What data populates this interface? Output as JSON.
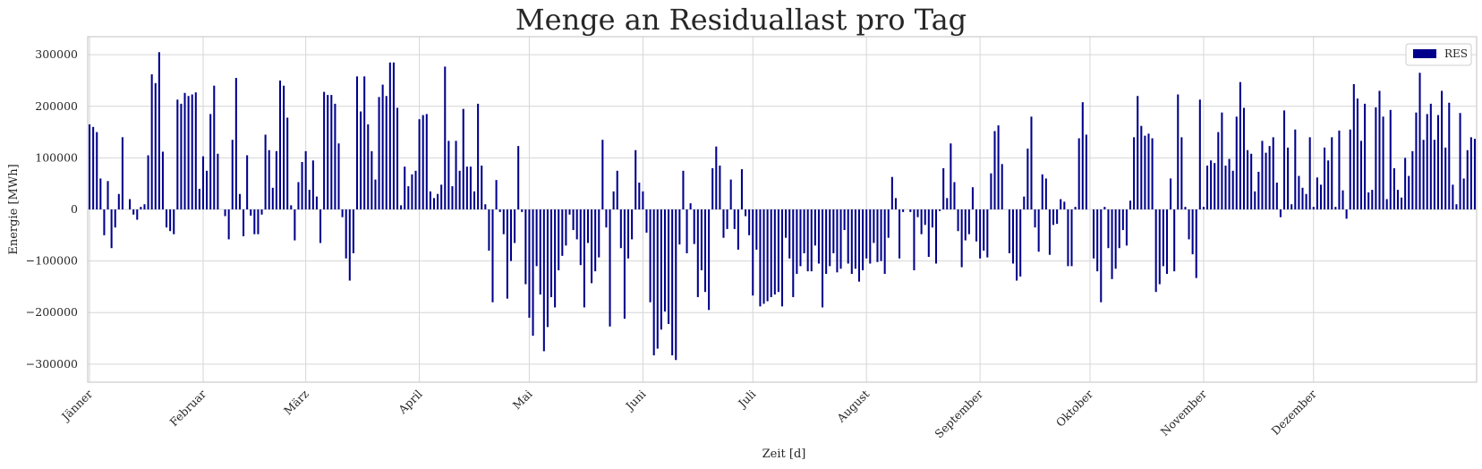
{
  "chart_data": {
    "type": "bar",
    "title": "Menge an Residuallast pro Tag",
    "xlabel": "Zeit [d]",
    "ylabel": "Energie [MWh]",
    "ylim": [
      -335000,
      335000
    ],
    "yticks": [
      -300000,
      -200000,
      -100000,
      0,
      100000,
      200000,
      300000
    ],
    "ytick_labels": [
      "−300000",
      "−200000",
      "−100000",
      "0",
      "100000",
      "200000",
      "300000"
    ],
    "xticks": [
      {
        "label": "Jänner",
        "day": 1
      },
      {
        "label": "Februar",
        "day": 32
      },
      {
        "label": "März",
        "day": 60
      },
      {
        "label": "April",
        "day": 91
      },
      {
        "label": "Mai",
        "day": 121
      },
      {
        "label": "Juni",
        "day": 152
      },
      {
        "label": "Juli",
        "day": 182
      },
      {
        "label": "August",
        "day": 213
      },
      {
        "label": "September",
        "day": 244
      },
      {
        "label": "Oktober",
        "day": 274
      },
      {
        "label": "November",
        "day": 305
      },
      {
        "label": "Dezember",
        "day": 335
      }
    ],
    "grid": true,
    "legend_position": "top-right",
    "series": [
      {
        "name": "RES",
        "color": "#00008b",
        "values": [
          165000,
          160000,
          150000,
          60000,
          -50000,
          55000,
          -75000,
          -35000,
          30000,
          140000,
          0,
          20000,
          -10000,
          -20000,
          5000,
          10000,
          105000,
          262000,
          245000,
          305000,
          112000,
          -35000,
          -42000,
          -48000,
          213000,
          205000,
          226000,
          220000,
          223000,
          227000,
          40000,
          103000,
          75000,
          185000,
          240000,
          108000,
          0,
          -13000,
          -58000,
          135000,
          255000,
          30000,
          -52000,
          105000,
          -12000,
          -48000,
          -48000,
          -10000,
          145000,
          115000,
          42000,
          113000,
          250000,
          240000,
          178000,
          8000,
          -60000,
          53000,
          92000,
          113000,
          38000,
          95000,
          25000,
          -65000,
          228000,
          222000,
          222000,
          205000,
          128000,
          -15000,
          -95000,
          -138000,
          -85000,
          258000,
          190000,
          258000,
          165000,
          113000,
          58000,
          218000,
          242000,
          220000,
          285000,
          285000,
          197000,
          8000,
          83000,
          45000,
          68000,
          75000,
          175000,
          183000,
          185000,
          35000,
          22000,
          30000,
          48000,
          277000,
          133000,
          45000,
          133000,
          75000,
          195000,
          83000,
          83000,
          35000,
          205000,
          85000,
          10000,
          -80000,
          -180000,
          57000,
          -5000,
          -48000,
          -173000,
          -100000,
          -65000,
          123000,
          -5000,
          -145000,
          -210000,
          -245000,
          -110000,
          -165000,
          -275000,
          -228000,
          -170000,
          -190000,
          -118000,
          -90000,
          -70000,
          -10000,
          -40000,
          -58000,
          -108000,
          -190000,
          -65000,
          -143000,
          -120000,
          -93000,
          135000,
          -35000,
          -227000,
          35000,
          75000,
          -75000,
          -212000,
          -95000,
          -58000,
          115000,
          52000,
          35000,
          -45000,
          -180000,
          -283000,
          -270000,
          -233000,
          -198000,
          -222000,
          -283000,
          -292000,
          -68000,
          75000,
          -85000,
          12000,
          -67000,
          -170000,
          -118000,
          -160000,
          -195000,
          80000,
          122000,
          85000,
          -55000,
          -38000,
          58000,
          -38000,
          -78000,
          78000,
          -13000,
          -50000,
          -167000,
          -78000,
          -188000,
          -183000,
          -178000,
          -170000,
          -165000,
          -160000,
          -188000,
          -55000,
          -95000,
          -170000,
          -125000,
          -110000,
          -85000,
          -120000,
          -120000,
          -70000,
          -105000,
          -190000,
          -125000,
          -110000,
          -85000,
          -122000,
          -115000,
          -40000,
          -105000,
          -125000,
          -115000,
          -140000,
          -118000,
          -95000,
          -105000,
          -65000,
          -102000,
          -100000,
          -125000,
          -55000,
          63000,
          22000,
          -95000,
          -5000,
          0,
          -5000,
          -118000,
          -15000,
          -48000,
          -30000,
          -92000,
          -35000,
          -105000,
          -3000,
          80000,
          22000,
          128000,
          53000,
          -42000,
          -112000,
          -60000,
          -48000,
          43000,
          -62000,
          -95000,
          -80000,
          -93000,
          70000,
          152000,
          163000,
          88000,
          0,
          -85000,
          -105000,
          -138000,
          -130000,
          25000,
          118000,
          180000,
          -35000,
          -82000,
          68000,
          60000,
          -88000,
          -30000,
          -28000,
          20000,
          15000,
          -110000,
          -110000,
          5000,
          138000,
          208000,
          145000,
          0,
          -95000,
          -120000,
          -180000,
          5000,
          -75000,
          -135000,
          -115000,
          -75000,
          -40000,
          -70000,
          17000,
          140000,
          220000,
          162000,
          143000,
          147000,
          138000,
          -160000,
          -145000,
          -110000,
          -125000,
          60000,
          -120000,
          223000,
          140000,
          5000,
          -58000,
          -87000,
          -133000,
          213000,
          5000,
          85000,
          95000,
          90000,
          150000,
          188000,
          85000,
          98000,
          75000,
          180000,
          247000,
          197000,
          115000,
          108000,
          35000,
          73000,
          133000,
          110000,
          123000,
          140000,
          52000,
          -15000,
          192000,
          120000,
          10000,
          155000,
          65000,
          42000,
          30000,
          140000,
          5000,
          62000,
          48000,
          120000,
          95000,
          140000,
          5000,
          153000,
          37000,
          -18000,
          155000,
          243000,
          215000,
          133000,
          205000,
          33000,
          38000,
          198000,
          230000,
          180000,
          20000,
          193000,
          80000,
          38000,
          23000,
          100000,
          65000,
          113000,
          188000,
          265000,
          135000,
          185000,
          205000,
          135000,
          183000,
          230000,
          120000,
          207000,
          48000,
          10000,
          187000,
          60000,
          115000,
          140000,
          137000
        ]
      }
    ]
  }
}
